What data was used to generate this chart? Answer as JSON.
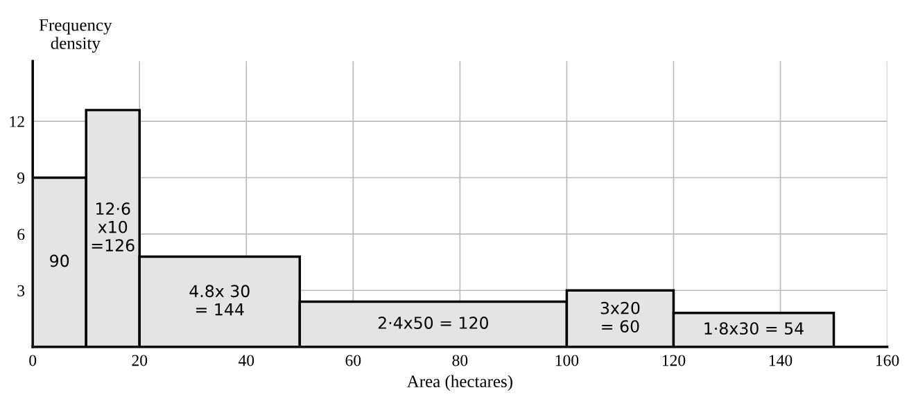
{
  "chart_data": {
    "type": "histogram",
    "xlabel": "Area (hectares)",
    "ylabel": "Frequency\ndensity",
    "bins": [
      0,
      10,
      20,
      50,
      100,
      120,
      150
    ],
    "values": [
      9,
      12.6,
      4.8,
      2.4,
      3,
      1.8
    ],
    "color": "#e4e4e4",
    "xlim": [
      0,
      160
    ],
    "xticks": [
      0,
      20,
      40,
      60,
      80,
      100,
      120,
      140,
      160
    ],
    "ylim": [
      0,
      15.2
    ],
    "yticks": [
      3,
      6,
      9,
      12
    ],
    "grid": true,
    "annotations": [
      "90",
      "12·6\nx10\n=126",
      "4.8x 30\n= 144",
      "2·4x50 = 120",
      "3x20\n= 60",
      "1·8x30 = 54"
    ]
  }
}
